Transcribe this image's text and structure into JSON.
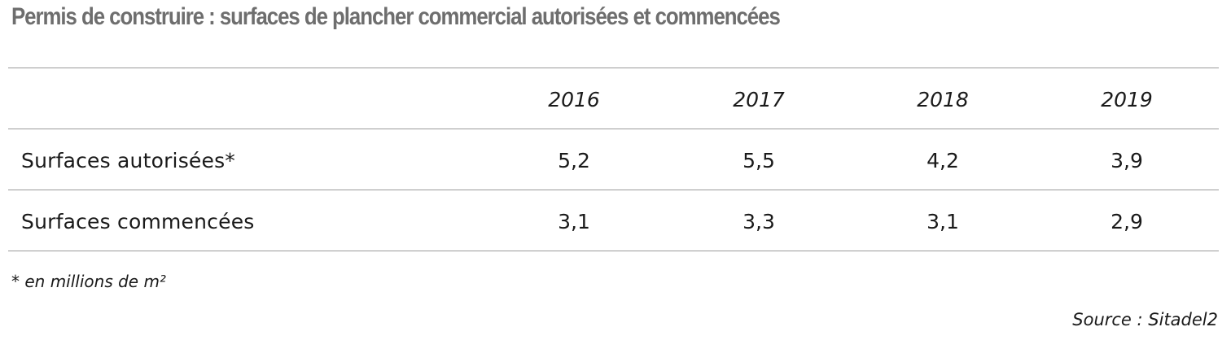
{
  "title": "Permis de construire : surfaces de plancher commercial autorisées et commencées",
  "table": {
    "headers": [
      "2016",
      "2017",
      "2018",
      "2019"
    ],
    "rows": [
      {
        "label": "Surfaces autorisées*",
        "values": [
          "5,2",
          "5,5",
          "4,2",
          "3,9"
        ]
      },
      {
        "label": "Surfaces commencées",
        "values": [
          "3,1",
          "3,3",
          "3,1",
          "2,9"
        ]
      }
    ]
  },
  "footnote": "* en millions de m²",
  "source": "Source : Sitadel2"
}
